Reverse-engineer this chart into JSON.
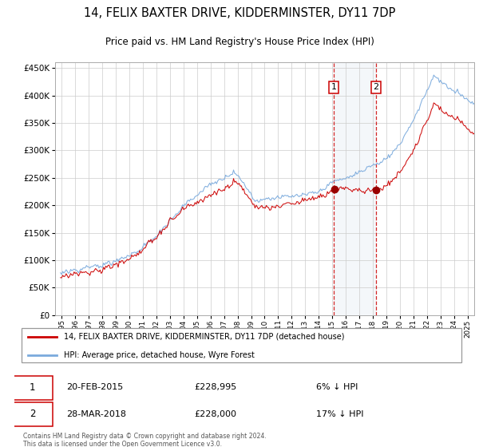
{
  "title": "14, FELIX BAXTER DRIVE, KIDDERMINSTER, DY11 7DP",
  "subtitle": "Price paid vs. HM Land Registry's House Price Index (HPI)",
  "legend_line1": "14, FELIX BAXTER DRIVE, KIDDERMINSTER, DY11 7DP (detached house)",
  "legend_line2": "HPI: Average price, detached house, Wyre Forest",
  "sale1_date": "20-FEB-2015",
  "sale1_price": 228995,
  "sale1_label": "6% ↓ HPI",
  "sale2_date": "28-MAR-2018",
  "sale2_price": 228000,
  "sale2_label": "17% ↓ HPI",
  "footnote": "Contains HM Land Registry data © Crown copyright and database right 2024.\nThis data is licensed under the Open Government Licence v3.0.",
  "hpi_color": "#7aaadd",
  "price_color": "#cc0000",
  "sale_dot_color": "#990000",
  "background_color": "#ffffff",
  "grid_color": "#cccccc",
  "sale1_year": 2015.12,
  "sale2_year": 2018.24,
  "ylim": [
    0,
    460000
  ],
  "xlim_start": 1994.5,
  "xlim_end": 2025.5,
  "yticks": [
    0,
    50000,
    100000,
    150000,
    200000,
    250000,
    300000,
    350000,
    400000,
    450000
  ]
}
